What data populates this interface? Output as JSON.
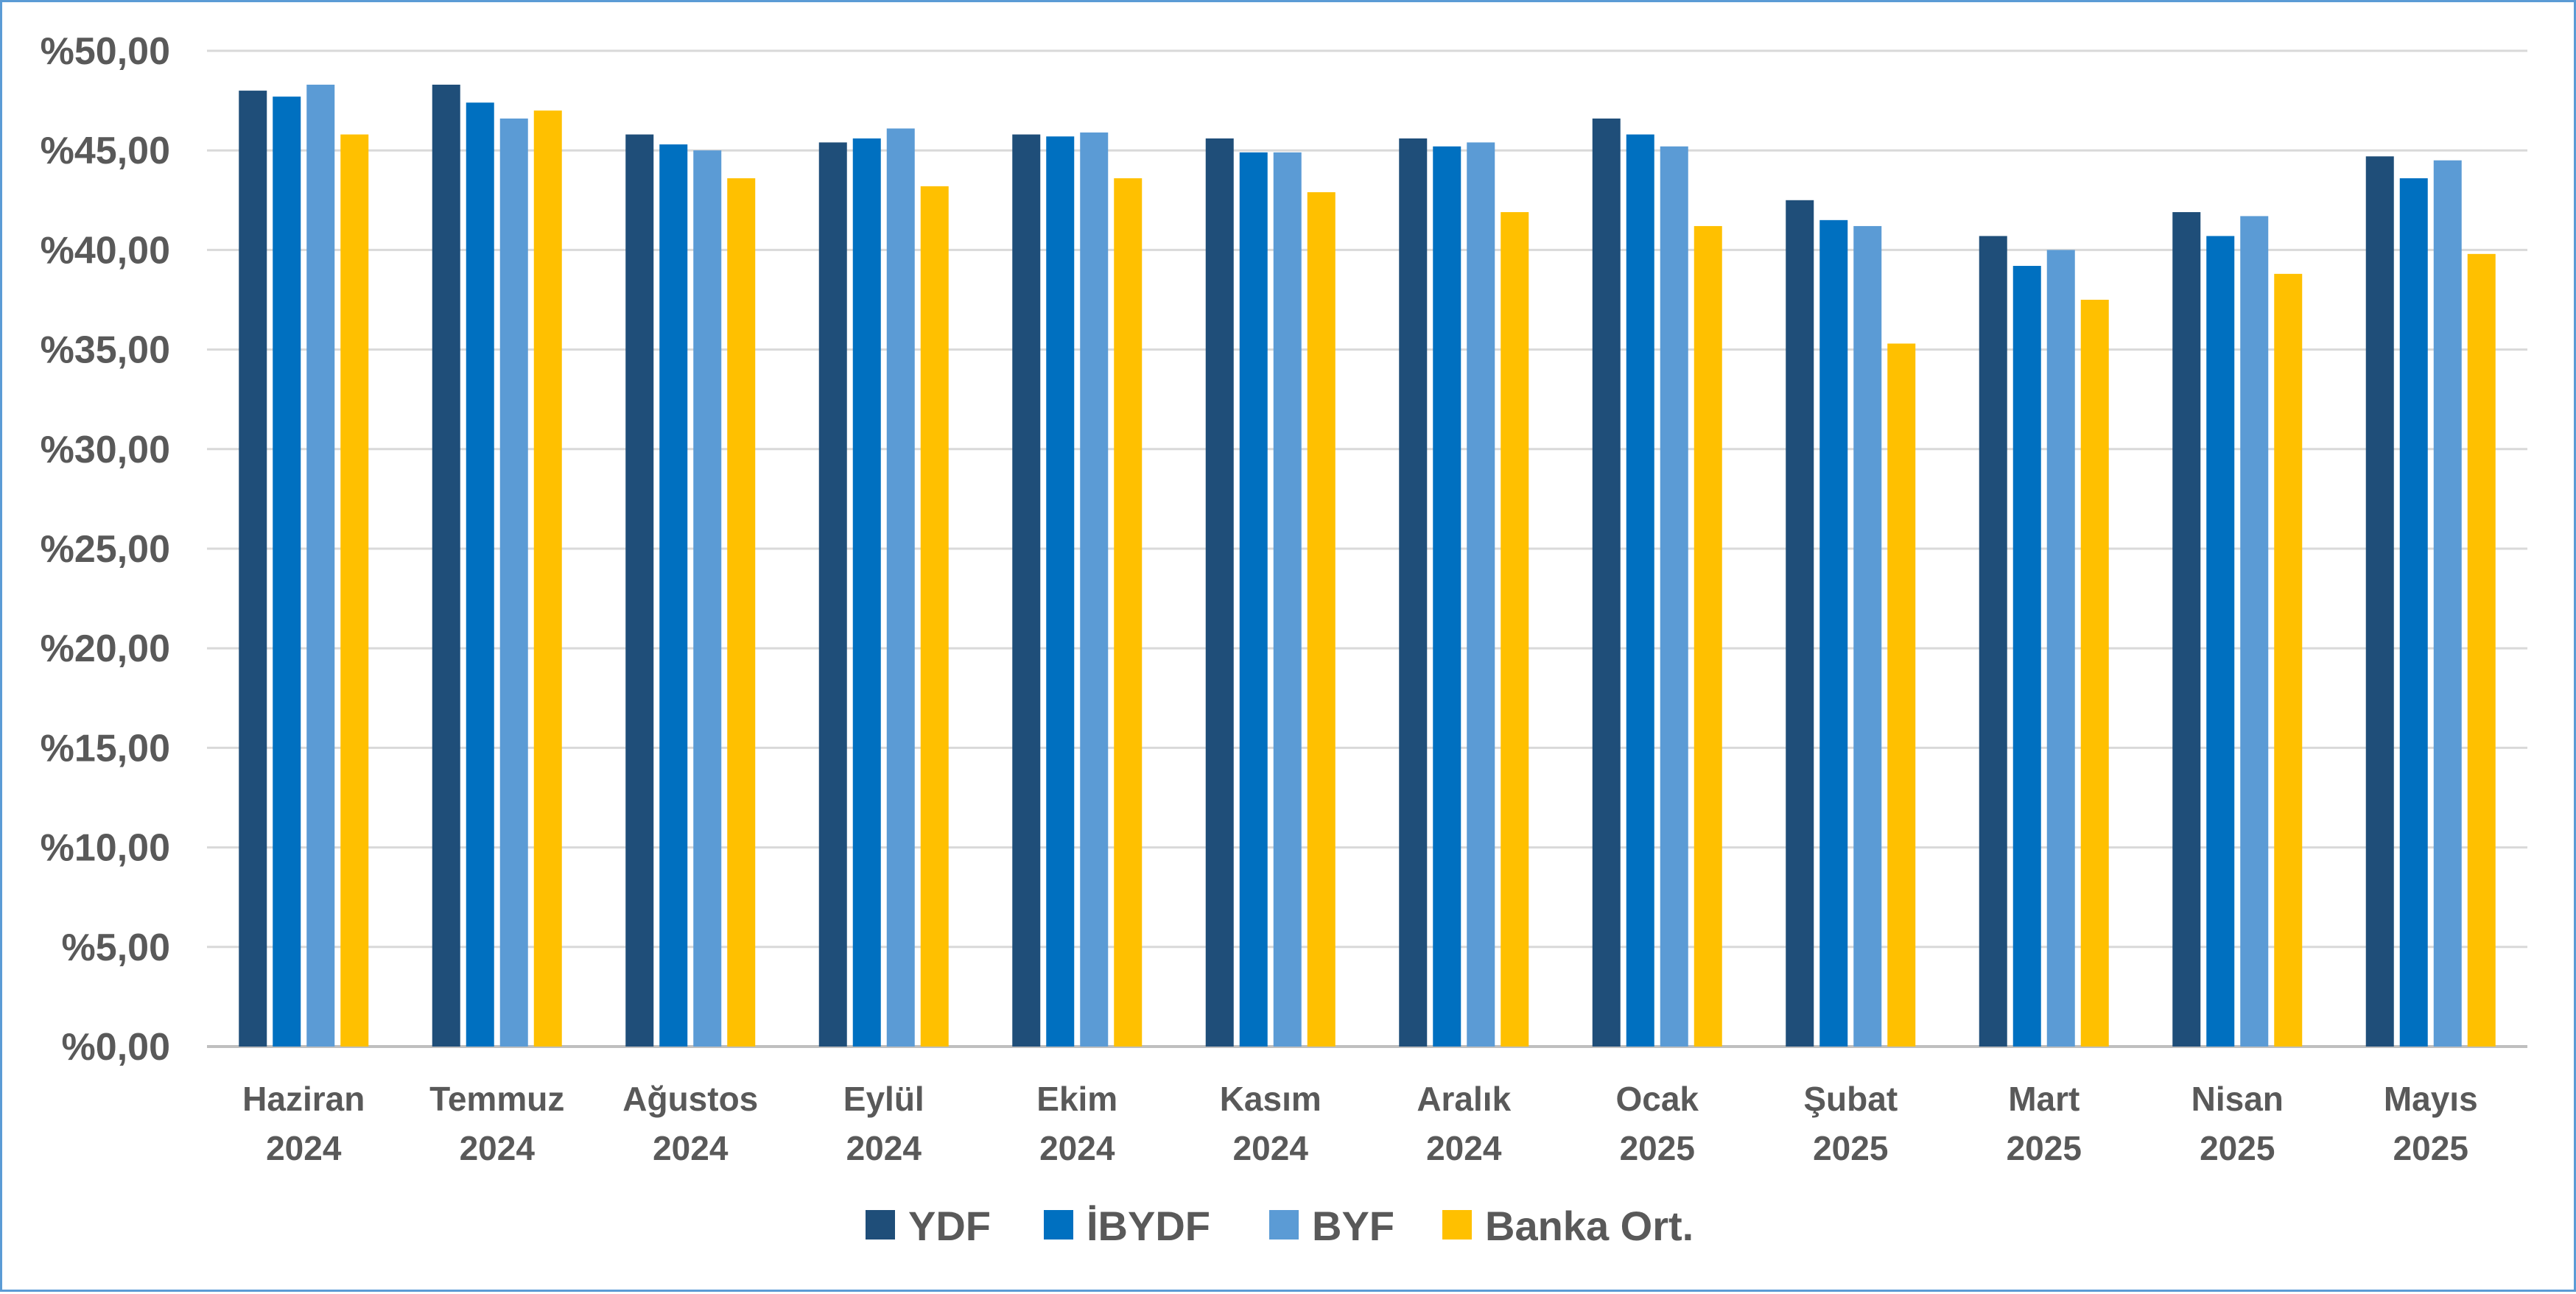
{
  "chart_data": {
    "type": "bar",
    "title": "",
    "xlabel": "",
    "ylabel": "",
    "ylim": [
      0,
      50
    ],
    "y_ticks": [
      {
        "value": 0,
        "label": "%0,00"
      },
      {
        "value": 5,
        "label": "%5,00"
      },
      {
        "value": 10,
        "label": "%10,00"
      },
      {
        "value": 15,
        "label": "%15,00"
      },
      {
        "value": 20,
        "label": "%20,00"
      },
      {
        "value": 25,
        "label": "%25,00"
      },
      {
        "value": 30,
        "label": "%30,00"
      },
      {
        "value": 35,
        "label": "%35,00"
      },
      {
        "value": 40,
        "label": "%40,00"
      },
      {
        "value": 45,
        "label": "%45,00"
      },
      {
        "value": 50,
        "label": "%50,00"
      }
    ],
    "grid": true,
    "legend_position": "bottom",
    "categories": [
      {
        "month": "Haziran",
        "year": "2024"
      },
      {
        "month": "Temmuz",
        "year": "2024"
      },
      {
        "month": "Ağustos",
        "year": "2024"
      },
      {
        "month": "Eylül",
        "year": "2024"
      },
      {
        "month": "Ekim",
        "year": "2024"
      },
      {
        "month": "Kasım",
        "year": "2024"
      },
      {
        "month": "Aralık",
        "year": "2024"
      },
      {
        "month": "Ocak",
        "year": "2025"
      },
      {
        "month": "Şubat",
        "year": "2025"
      },
      {
        "month": "Mart",
        "year": "2025"
      },
      {
        "month": "Nisan",
        "year": "2025"
      },
      {
        "month": "Mayıs",
        "year": "2025"
      }
    ],
    "series": [
      {
        "name": "YDF",
        "color": "#1f4e79",
        "values": [
          48.0,
          48.3,
          45.8,
          45.4,
          45.8,
          45.6,
          45.6,
          46.6,
          42.5,
          40.7,
          41.9,
          44.7
        ]
      },
      {
        "name": "İBYDF",
        "color": "#0070c0",
        "values": [
          47.7,
          47.4,
          45.3,
          45.6,
          45.7,
          44.9,
          45.2,
          45.8,
          41.5,
          39.2,
          40.7,
          43.6
        ]
      },
      {
        "name": "BYF",
        "color": "#5b9bd5",
        "values": [
          48.3,
          46.6,
          45.0,
          46.1,
          45.9,
          44.9,
          45.4,
          45.2,
          41.2,
          40.0,
          41.7,
          44.5
        ]
      },
      {
        "name": "Banka Ort.",
        "color": "#ffc000",
        "values": [
          45.8,
          47.0,
          43.6,
          43.2,
          43.6,
          42.9,
          41.9,
          41.2,
          35.3,
          37.5,
          38.8,
          39.8
        ]
      }
    ],
    "colors": {
      "grid": "#d9d9d9",
      "axis": "#bfbfbf",
      "text": "#595959",
      "border": "#5b9bd5"
    }
  }
}
